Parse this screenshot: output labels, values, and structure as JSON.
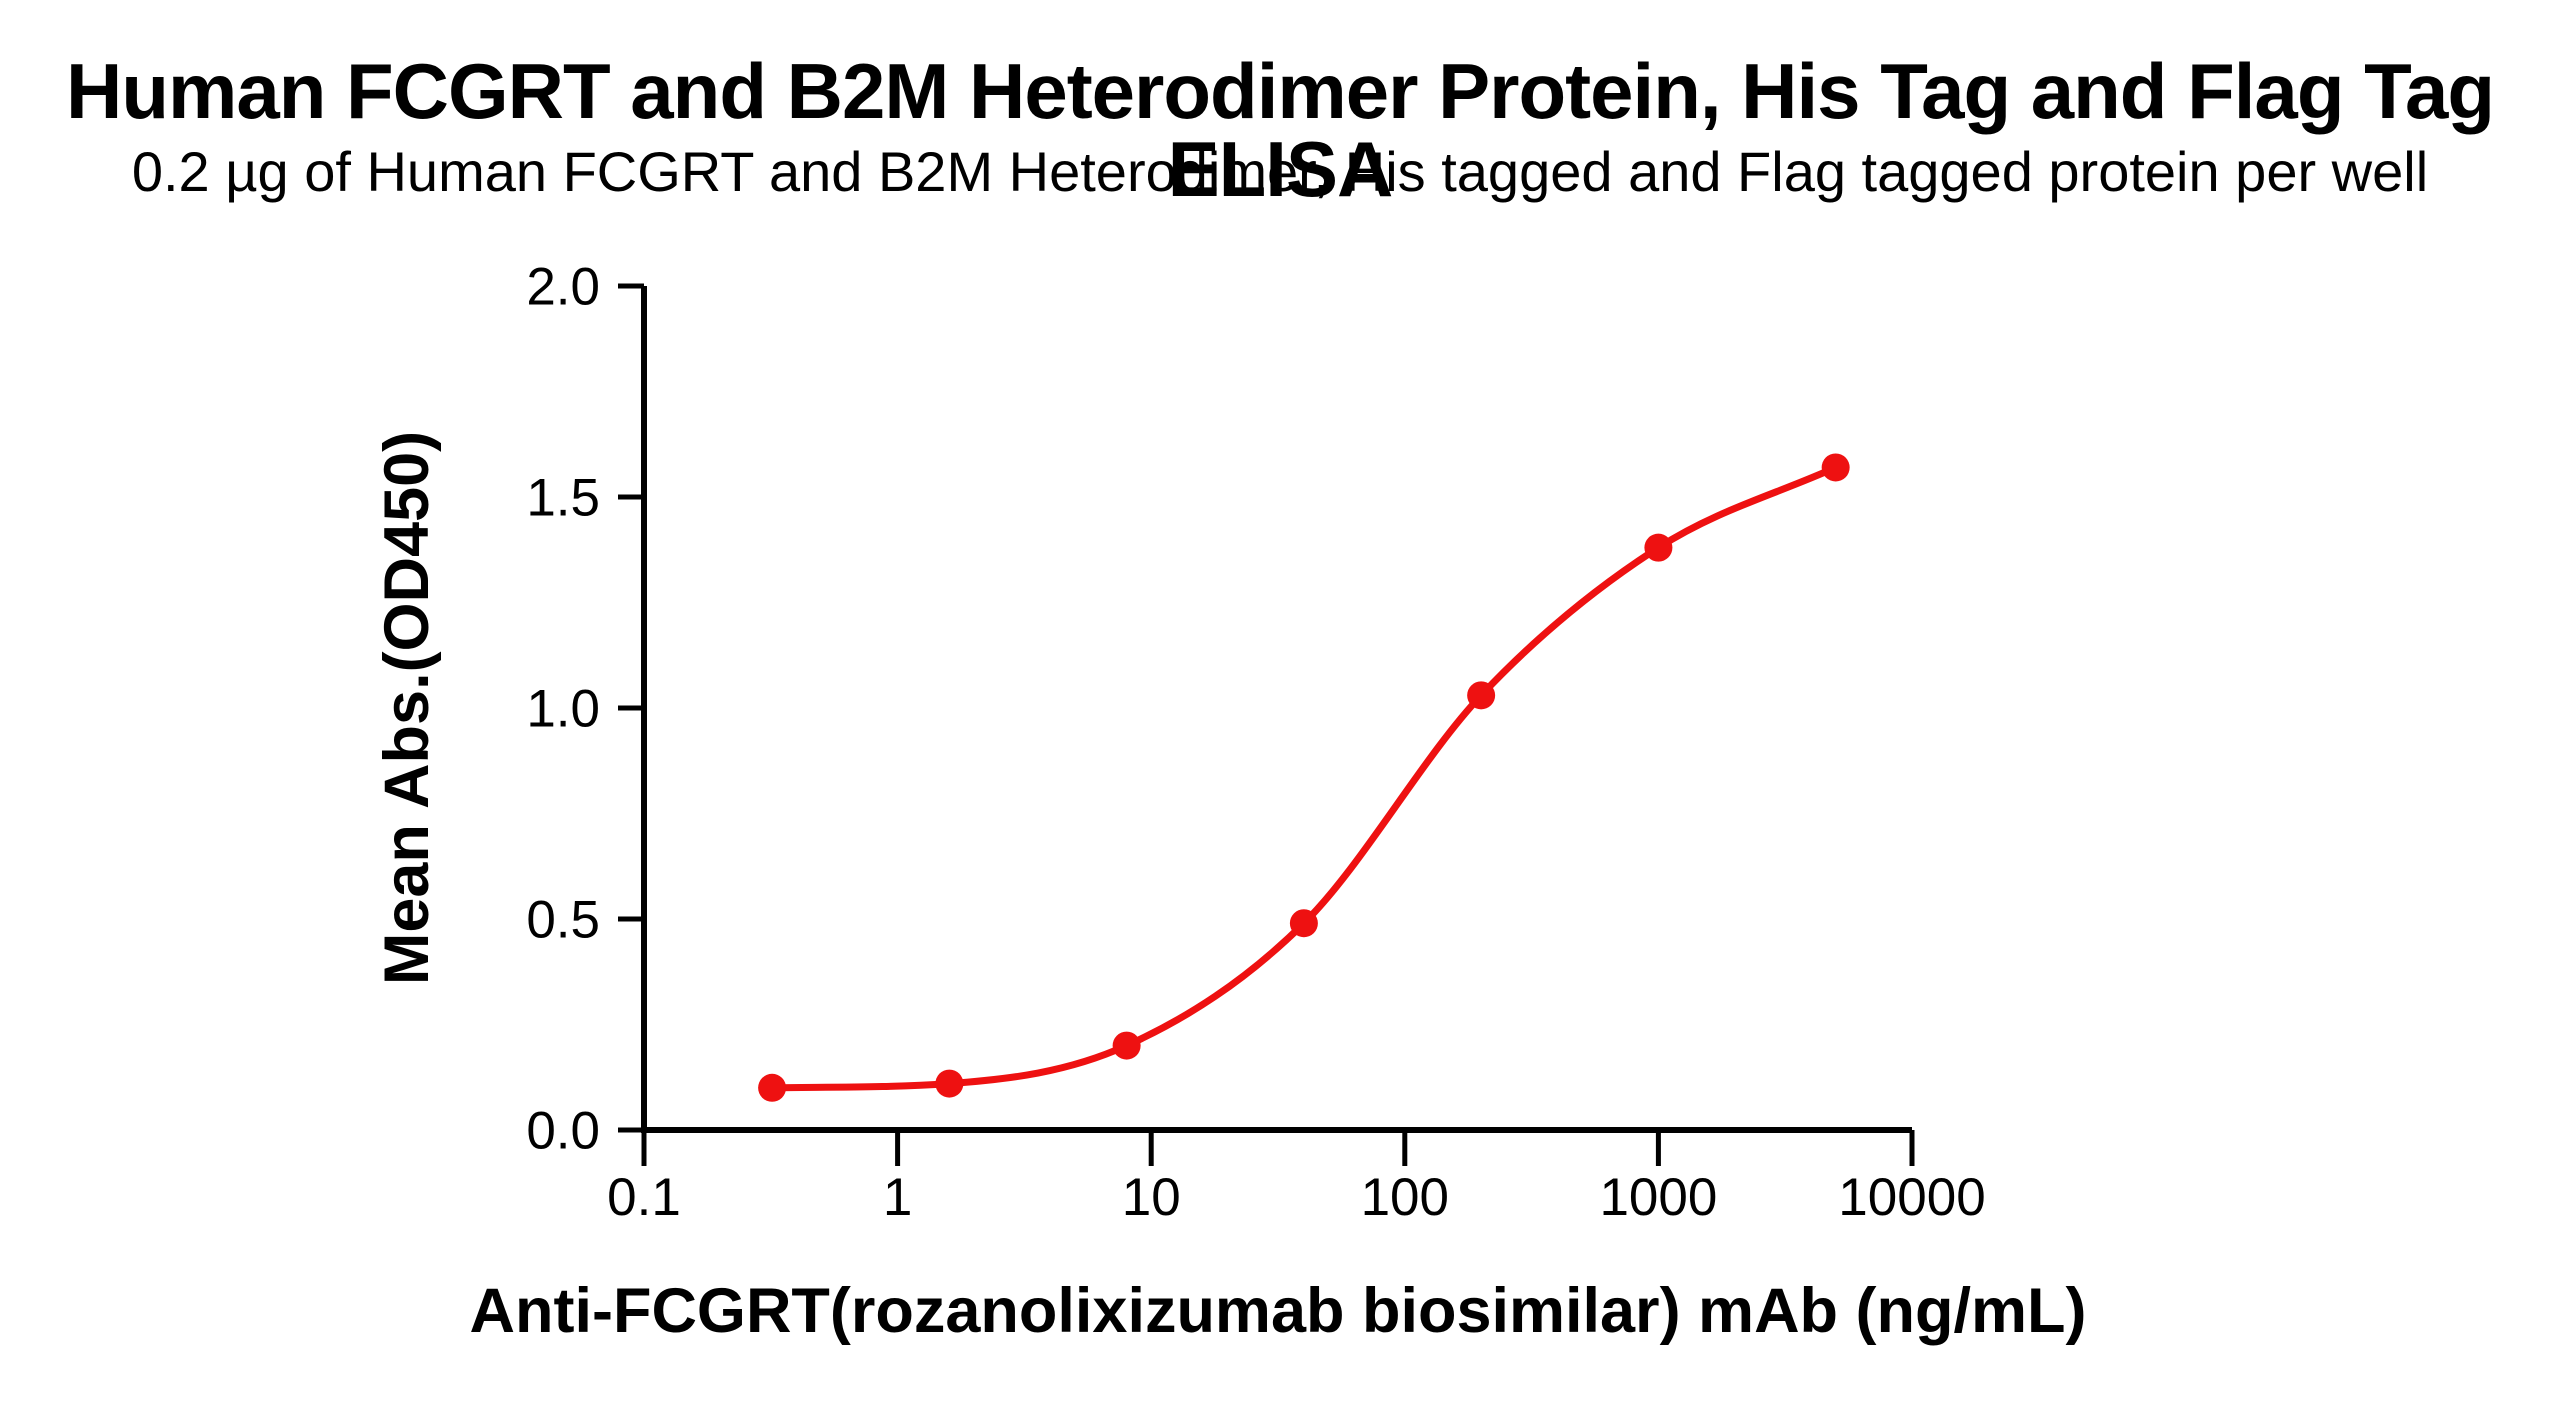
{
  "figure": {
    "title": "Human FCGRT and B2M Heterodimer Protein, His Tag and Flag Tag ELISA",
    "subtitle": "0.2 µg of Human FCGRT and B2M Heterodimer, His tagged and Flag tagged protein per well"
  },
  "chart_data": {
    "type": "scatter",
    "title": "Human FCGRT and B2M Heterodimer Protein, His Tag and Flag Tag ELISA",
    "subtitle": "0.2 µg of Human FCGRT and B2M Heterodimer, His tagged and Flag tagged protein per well",
    "xlabel": "Anti-FCGRT(rozanolixizumab biosimilar) mAb (ng/mL)",
    "ylabel": "Mean Abs.(OD450)",
    "x_scale": "log10",
    "xlim": [
      0.1,
      10000
    ],
    "ylim": [
      0.0,
      2.0
    ],
    "x_ticks": [
      0.1,
      1,
      10,
      100,
      1000,
      10000
    ],
    "x_tick_labels": [
      "0.1",
      "1",
      "10",
      "100",
      "1000",
      "10000"
    ],
    "y_ticks": [
      0.0,
      0.5,
      1.0,
      1.5,
      2.0
    ],
    "y_tick_labels": [
      "0.0",
      "0.5",
      "1.0",
      "1.5",
      "2.0"
    ],
    "grid": false,
    "legend": null,
    "series": [
      {
        "name": "Anti-FCGRT(rozanolixizumab biosimilar) mAb",
        "marker": "filled-circle",
        "color": "#EE1111",
        "curve_through_points": true,
        "x": [
          0.32,
          1.6,
          8,
          40,
          200,
          1000,
          5000
        ],
        "y": [
          0.1,
          0.11,
          0.2,
          0.49,
          1.03,
          1.38,
          1.57
        ]
      }
    ]
  },
  "colors": {
    "series_red": "#EE1111",
    "axis_black": "#000000",
    "background": "#FFFFFF"
  }
}
